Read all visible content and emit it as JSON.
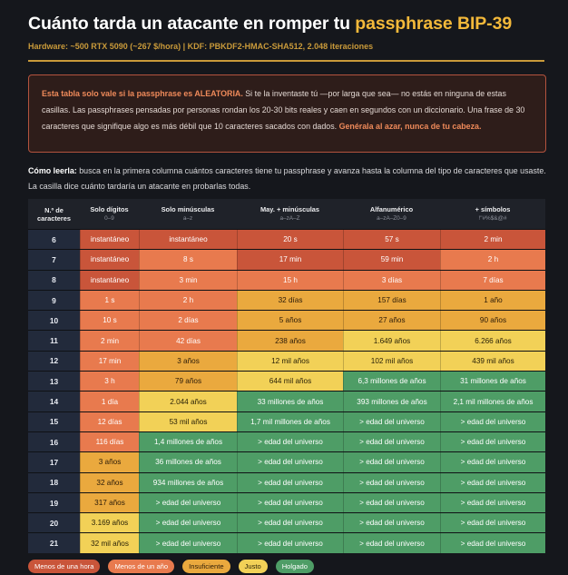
{
  "header": {
    "title_main": "Cuánto tarda un atacante en romper tu ",
    "title_highlight": "passphrase BIP-39",
    "subtitle": "Hardware: ~500 RTX 5090 (~267 $/hora)  |  KDF: PBKDF2-HMAC-SHA512, 2.048 iteraciones"
  },
  "warning": {
    "part1": "Esta tabla solo vale si la passphrase es ALEATORIA.",
    "part2": " Si te la inventaste tú —por larga que sea— no estás en ninguna de estas casillas. Las passphrases pensadas por personas rondan los 20-30 bits reales y caen en segundos con un diccionario. Una frase de 30 caracteres que signifique algo es más débil que 10 caracteres sacados con dados. ",
    "part3": "Genérala al azar, nunca de tu cabeza."
  },
  "howto": {
    "lead": "Cómo leerla:",
    "text": " busca en la primera columna cuántos caracteres tiene tu passphrase y avanza hasta la columna del tipo de caracteres que usaste. La casilla dice cuánto tardaría un atacante en probarlas todas."
  },
  "colors": {
    "menos_hora": "#c9553a",
    "menos_anio": "#e87a4e",
    "insuficiente": "#eaa93e",
    "justo": "#f2d157",
    "holgado": "#4e9d66"
  },
  "table": {
    "headers": [
      {
        "label": "N.º de caracteres",
        "sub": ""
      },
      {
        "label": "Solo dígitos",
        "sub": "0–9"
      },
      {
        "label": "Solo minúsculas",
        "sub": "a–z"
      },
      {
        "label": "May. + minúsculas",
        "sub": "a–zA–Z"
      },
      {
        "label": "Alfanumérico",
        "sub": "a–zA–Z0–9"
      },
      {
        "label": "+ símbolos",
        "sub": "!\"#%$&@#"
      }
    ],
    "rows": [
      {
        "n": "6",
        "cells": [
          [
            "instantáneo",
            "h"
          ],
          [
            "instantáneo",
            "h"
          ],
          [
            "20 s",
            "h"
          ],
          [
            "57 s",
            "h"
          ],
          [
            "2 min",
            "h"
          ]
        ]
      },
      {
        "n": "7",
        "cells": [
          [
            "instantáneo",
            "h"
          ],
          [
            "8 s",
            "a"
          ],
          [
            "17 min",
            "h"
          ],
          [
            "59 min",
            "h"
          ],
          [
            "2 h",
            "a"
          ]
        ]
      },
      {
        "n": "8",
        "cells": [
          [
            "instantáneo",
            "h"
          ],
          [
            "3 min",
            "a"
          ],
          [
            "15 h",
            "a"
          ],
          [
            "3 días",
            "a"
          ],
          [
            "7 días",
            "a"
          ]
        ]
      },
      {
        "n": "9",
        "cells": [
          [
            "1 s",
            "a"
          ],
          [
            "2 h",
            "a"
          ],
          [
            "32 días",
            "i"
          ],
          [
            "157 días",
            "i"
          ],
          [
            "1 año",
            "i"
          ]
        ]
      },
      {
        "n": "10",
        "cells": [
          [
            "10 s",
            "a"
          ],
          [
            "2 días",
            "a"
          ],
          [
            "5 años",
            "i"
          ],
          [
            "27 años",
            "i"
          ],
          [
            "90 años",
            "i"
          ]
        ]
      },
      {
        "n": "11",
        "cells": [
          [
            "2 min",
            "a"
          ],
          [
            "42 días",
            "a"
          ],
          [
            "238 años",
            "i"
          ],
          [
            "1.649 años",
            "j"
          ],
          [
            "6.266 años",
            "j"
          ]
        ]
      },
      {
        "n": "12",
        "cells": [
          [
            "17 min",
            "a"
          ],
          [
            "3 años",
            "i"
          ],
          [
            "12 mil años",
            "j"
          ],
          [
            "102 mil años",
            "j"
          ],
          [
            "439 mil años",
            "j"
          ]
        ]
      },
      {
        "n": "13",
        "cells": [
          [
            "3 h",
            "a"
          ],
          [
            "79 años",
            "i"
          ],
          [
            "644 mil años",
            "j"
          ],
          [
            "6,3 millones de años",
            "g"
          ],
          [
            "31 millones de años",
            "g"
          ]
        ]
      },
      {
        "n": "14",
        "cells": [
          [
            "1 día",
            "a"
          ],
          [
            "2.044 años",
            "j"
          ],
          [
            "33 millones de años",
            "g"
          ],
          [
            "393 millones de años",
            "g"
          ],
          [
            "2,1 mil millones de años",
            "g"
          ]
        ]
      },
      {
        "n": "15",
        "cells": [
          [
            "12 días",
            "a"
          ],
          [
            "53 mil años",
            "j"
          ],
          [
            "1,7 mil millones de años",
            "g"
          ],
          [
            "> edad del universo",
            "g"
          ],
          [
            "> edad del universo",
            "g"
          ]
        ]
      },
      {
        "n": "16",
        "cells": [
          [
            "116 días",
            "a"
          ],
          [
            "1,4 millones de años",
            "g"
          ],
          [
            "> edad del universo",
            "g"
          ],
          [
            "> edad del universo",
            "g"
          ],
          [
            "> edad del universo",
            "g"
          ]
        ]
      },
      {
        "n": "17",
        "cells": [
          [
            "3 años",
            "i"
          ],
          [
            "36 millones de años",
            "g"
          ],
          [
            "> edad del universo",
            "g"
          ],
          [
            "> edad del universo",
            "g"
          ],
          [
            "> edad del universo",
            "g"
          ]
        ]
      },
      {
        "n": "18",
        "cells": [
          [
            "32 años",
            "i"
          ],
          [
            "934 millones de años",
            "g"
          ],
          [
            "> edad del universo",
            "g"
          ],
          [
            "> edad del universo",
            "g"
          ],
          [
            "> edad del universo",
            "g"
          ]
        ]
      },
      {
        "n": "19",
        "cells": [
          [
            "317 años",
            "i"
          ],
          [
            "> edad del universo",
            "g"
          ],
          [
            "> edad del universo",
            "g"
          ],
          [
            "> edad del universo",
            "g"
          ],
          [
            "> edad del universo",
            "g"
          ]
        ]
      },
      {
        "n": "20",
        "cells": [
          [
            "3.169 años",
            "j"
          ],
          [
            "> edad del universo",
            "g"
          ],
          [
            "> edad del universo",
            "g"
          ],
          [
            "> edad del universo",
            "g"
          ],
          [
            "> edad del universo",
            "g"
          ]
        ]
      },
      {
        "n": "21",
        "cells": [
          [
            "32 mil años",
            "j"
          ],
          [
            "> edad del universo",
            "g"
          ],
          [
            "> edad del universo",
            "g"
          ],
          [
            "> edad del universo",
            "g"
          ],
          [
            "> edad del universo",
            "g"
          ]
        ]
      }
    ]
  },
  "legend": [
    {
      "label": "Menos de una hora",
      "key": "h"
    },
    {
      "label": "Menos de un año",
      "key": "a"
    },
    {
      "label": "Insuficiente",
      "key": "i"
    },
    {
      "label": "Justo",
      "key": "j"
    },
    {
      "label": "Holgado",
      "key": "g"
    }
  ]
}
